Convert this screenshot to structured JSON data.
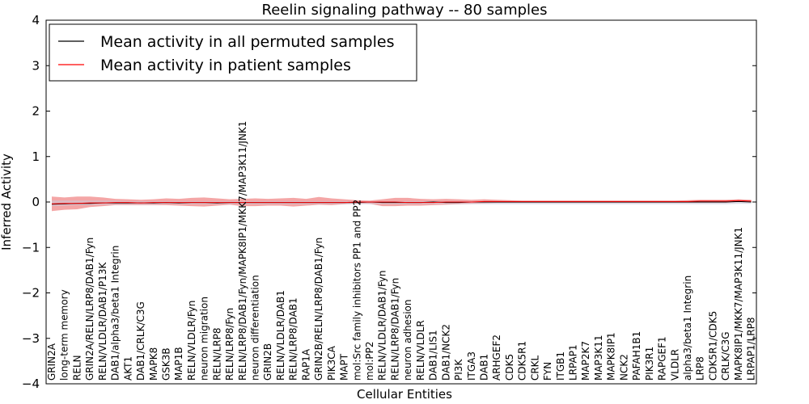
{
  "chart_data": {
    "type": "line",
    "title": "Reelin signaling pathway -- 80 samples",
    "xlabel": "Cellular Entities",
    "ylabel": "Inferred Activity",
    "ylim": [
      -4,
      4
    ],
    "yticks": [
      "−4",
      "−3",
      "−2",
      "−1",
      "0",
      "1",
      "2",
      "3",
      "4"
    ],
    "ytick_values": [
      -4,
      -3,
      -2,
      -1,
      0,
      1,
      2,
      3,
      4
    ],
    "grid": false,
    "legend_position": "top-left",
    "categories": [
      "GRIN2A",
      "long-term memory",
      "RELN",
      "GRIN2A/RELN/LRP8/DAB1/Fyn",
      "RELN/VLDLR/DAB1/P13K",
      "DAB1/alpha3/beta1 Integrin",
      "AKT1",
      "DAB1/CRLK/C3G",
      "MAPK8",
      "GSK3B",
      "MAP1B",
      "RELN/VLDLR/Fyn",
      "neuron migration",
      "RELN/LRP8",
      "RELN/LRP8/Fyn",
      "RELN/LRP8/DAB1/Fyn/MAPK8IP1/MKK7/MAP3K11/JNK1",
      "neuron differentiation",
      "GRIN2B",
      "RELN/VLDLR/DAB1",
      "RELN/LRP8/DAB1",
      "RAP1A",
      "GRIN2B/RELN/LRP8/DAB1/Fyn",
      "PIK3CA",
      "MAPT",
      "mol:Src family inhibitors PP1 and PP2",
      "mol:PP2",
      "RELN/VLDLR/DAB1/Fyn",
      "RELN/LRP8/DAB1/Fyn",
      "neuron adhesion",
      "RELN/VLDLR",
      "DAB1/LIS1",
      "DAB1/NCK2",
      "PI3K",
      "ITGA3",
      "DAB1",
      "ARHGEF2",
      "CDK5",
      "CDK5R1",
      "CRKL",
      "FYN",
      "ITGB1",
      "LRPAP1",
      "MAP2K7",
      "MAP3K11",
      "MAPK8IP1",
      "NCK2",
      "PAFAH1B1",
      "PIK3R1",
      "RAPGEF1",
      "VLDLR",
      "alpha3/beta1 Integrin",
      "LRP8",
      "CDK5R1/CDK5",
      "CRLK/C3G",
      "MAPK8IP1/MKK7/MAP3K11/JNK1",
      "LRPAP1/LRP8"
    ],
    "series": [
      {
        "name": "Mean activity in all permuted samples",
        "color": "#000000",
        "values": [
          -0.05,
          -0.04,
          -0.03,
          -0.03,
          -0.02,
          -0.02,
          -0.02,
          -0.02,
          -0.02,
          -0.01,
          -0.02,
          -0.01,
          -0.01,
          -0.02,
          -0.01,
          -0.01,
          -0.01,
          -0.01,
          -0.01,
          -0.01,
          -0.01,
          -0.01,
          -0.01,
          -0.01,
          -0.01,
          0.0,
          -0.01,
          -0.01,
          -0.01,
          -0.01,
          0.0,
          -0.01,
          -0.01,
          0.0,
          0.0,
          0.0,
          0.0,
          0.0,
          0.0,
          0.0,
          0.0,
          0.0,
          0.0,
          0.0,
          0.0,
          0.0,
          0.0,
          0.0,
          0.0,
          0.0,
          0.0,
          0.0,
          0.0,
          0.0,
          0.01,
          0.0
        ],
        "band": {
          "color": "#c9c9d9",
          "upper": [
            0.03,
            0.03,
            0.03,
            0.03,
            0.03,
            0.03,
            0.02,
            0.02,
            0.02,
            0.02,
            0.02,
            0.02,
            0.02,
            0.02,
            0.02,
            0.02,
            0.02,
            0.02,
            0.02,
            0.02,
            0.02,
            0.02,
            0.02,
            0.02,
            0.02,
            0.02,
            0.02,
            0.02,
            0.02,
            0.02,
            0.02,
            0.02,
            0.02,
            0.02,
            0.02,
            0.02,
            0.02,
            0.02,
            0.02,
            0.02,
            0.02,
            0.02,
            0.02,
            0.02,
            0.02,
            0.02,
            0.02,
            0.02,
            0.02,
            0.02,
            0.02,
            0.02,
            0.02,
            0.02,
            0.03,
            0.02
          ],
          "lower": [
            -0.09,
            -0.08,
            -0.07,
            -0.07,
            -0.06,
            -0.06,
            -0.06,
            -0.06,
            -0.06,
            -0.05,
            -0.05,
            -0.05,
            -0.05,
            -0.05,
            -0.05,
            -0.05,
            -0.05,
            -0.05,
            -0.05,
            -0.05,
            -0.05,
            -0.05,
            -0.05,
            -0.05,
            -0.05,
            -0.05,
            -0.05,
            -0.05,
            -0.05,
            -0.05,
            -0.05,
            -0.05,
            -0.05,
            -0.05,
            -0.05,
            -0.05,
            -0.05,
            -0.05,
            -0.05,
            -0.05,
            -0.05,
            -0.05,
            -0.05,
            -0.05,
            -0.05,
            -0.05,
            -0.05,
            -0.05,
            -0.05,
            -0.05,
            -0.05,
            -0.05,
            -0.05,
            -0.05,
            -0.04,
            -0.04
          ]
        }
      },
      {
        "name": "Mean activity in patient samples",
        "color": "#ff0000",
        "values": [
          -0.04,
          -0.03,
          -0.03,
          -0.02,
          -0.02,
          -0.01,
          -0.01,
          -0.02,
          -0.01,
          -0.01,
          -0.01,
          -0.01,
          -0.01,
          -0.01,
          -0.01,
          -0.01,
          -0.01,
          -0.01,
          -0.01,
          -0.01,
          -0.01,
          -0.01,
          -0.01,
          -0.01,
          0.0,
          0.0,
          0.0,
          0.0,
          -0.01,
          -0.01,
          -0.01,
          0.0,
          0.0,
          0.0,
          0.01,
          0.01,
          0.01,
          0.01,
          0.01,
          0.01,
          0.01,
          0.01,
          0.01,
          0.01,
          0.01,
          0.01,
          0.01,
          0.01,
          0.01,
          0.01,
          0.01,
          0.02,
          0.02,
          0.02,
          0.03,
          0.02
        ],
        "band": {
          "color": "#f08080",
          "upper": [
            0.12,
            0.1,
            0.12,
            0.12,
            0.1,
            0.07,
            0.06,
            0.05,
            0.06,
            0.08,
            0.07,
            0.09,
            0.1,
            0.08,
            0.06,
            0.07,
            0.08,
            0.07,
            0.08,
            0.09,
            0.07,
            0.11,
            0.08,
            0.06,
            0.04,
            0.03,
            0.06,
            0.09,
            0.09,
            0.07,
            0.06,
            0.07,
            0.06,
            0.05,
            0.06,
            0.05,
            0.04,
            0.03,
            0.03,
            0.03,
            0.03,
            0.03,
            0.03,
            0.03,
            0.03,
            0.03,
            0.03,
            0.03,
            0.03,
            0.03,
            0.04,
            0.05,
            0.05,
            0.05,
            0.06,
            0.05
          ],
          "lower": [
            -0.2,
            -0.17,
            -0.16,
            -0.11,
            -0.09,
            -0.07,
            -0.07,
            -0.07,
            -0.07,
            -0.07,
            -0.08,
            -0.09,
            -0.1,
            -0.08,
            -0.06,
            -0.09,
            -0.09,
            -0.08,
            -0.08,
            -0.1,
            -0.08,
            -0.06,
            -0.07,
            -0.05,
            -0.03,
            -0.04,
            -0.09,
            -0.09,
            -0.08,
            -0.08,
            -0.07,
            -0.06,
            -0.05,
            -0.04,
            -0.03,
            -0.02,
            -0.02,
            -0.02,
            -0.02,
            -0.02,
            -0.02,
            -0.02,
            -0.02,
            -0.02,
            -0.02,
            -0.02,
            -0.02,
            -0.02,
            -0.02,
            -0.02,
            -0.02,
            -0.02,
            -0.02,
            -0.02,
            0.0,
            -0.01
          ]
        }
      }
    ]
  }
}
